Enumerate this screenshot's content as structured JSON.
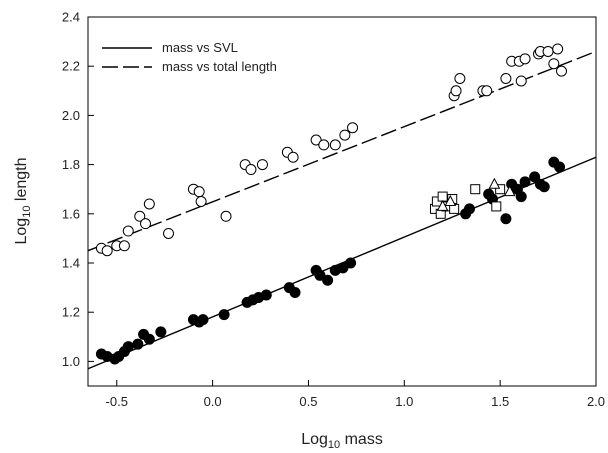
{
  "chart_data": {
    "type": "scatter",
    "xlabel": {
      "main": "Log",
      "sub": "10",
      "rest": " mass"
    },
    "ylabel": {
      "main": "Log",
      "sub": "10",
      "rest": " length"
    },
    "xlim": [
      -0.65,
      2.0
    ],
    "ylim": [
      0.9,
      2.4
    ],
    "xticks": [
      -0.5,
      0.0,
      0.5,
      1.0,
      1.5,
      2.0
    ],
    "xtick_labels": [
      "-0.5",
      "0.0",
      "0.5",
      "1.0",
      "1.5",
      "2.0"
    ],
    "yticks": [
      1.0,
      1.2,
      1.4,
      1.6,
      1.8,
      2.0,
      2.2,
      2.4
    ],
    "ytick_labels": [
      "1.0",
      "1.2",
      "1.4",
      "1.6",
      "1.8",
      "2.0",
      "2.2",
      "2.4"
    ],
    "legend_position": "top-left",
    "legend": [
      {
        "label": "mass vs SVL",
        "style": "solid"
      },
      {
        "label": "mass vs total length",
        "style": "dashed"
      }
    ],
    "lines": [
      {
        "style": "solid",
        "x": [
          -0.65,
          2.0
        ],
        "y": [
          0.97,
          1.83
        ]
      },
      {
        "style": "dashed",
        "x": [
          -0.65,
          2.0
        ],
        "y": [
          1.45,
          2.26
        ]
      }
    ],
    "series": [
      {
        "marker": "open-circle",
        "points": [
          [
            -0.58,
            1.46
          ],
          [
            -0.55,
            1.45
          ],
          [
            -0.5,
            1.47
          ],
          [
            -0.46,
            1.47
          ],
          [
            -0.44,
            1.53
          ],
          [
            -0.38,
            1.59
          ],
          [
            -0.35,
            1.56
          ],
          [
            -0.33,
            1.64
          ],
          [
            -0.23,
            1.52
          ],
          [
            -0.1,
            1.7
          ],
          [
            -0.07,
            1.69
          ],
          [
            -0.06,
            1.65
          ],
          [
            0.07,
            1.59
          ],
          [
            0.17,
            1.8
          ],
          [
            0.2,
            1.78
          ],
          [
            0.26,
            1.8
          ],
          [
            0.39,
            1.85
          ],
          [
            0.42,
            1.83
          ],
          [
            0.54,
            1.9
          ],
          [
            0.58,
            1.88
          ],
          [
            0.64,
            1.88
          ],
          [
            0.69,
            1.92
          ],
          [
            0.73,
            1.95
          ],
          [
            1.26,
            2.08
          ],
          [
            1.27,
            2.1
          ],
          [
            1.29,
            2.15
          ],
          [
            1.41,
            2.1
          ],
          [
            1.43,
            2.1
          ],
          [
            1.53,
            2.15
          ],
          [
            1.56,
            2.22
          ],
          [
            1.6,
            2.22
          ],
          [
            1.61,
            2.14
          ],
          [
            1.63,
            2.23
          ],
          [
            1.7,
            2.25
          ],
          [
            1.71,
            2.26
          ],
          [
            1.75,
            2.26
          ],
          [
            1.78,
            2.21
          ],
          [
            1.8,
            2.27
          ],
          [
            1.82,
            2.18
          ]
        ]
      },
      {
        "marker": "filled-circle",
        "points": [
          [
            -0.58,
            1.03
          ],
          [
            -0.55,
            1.02
          ],
          [
            -0.51,
            1.01
          ],
          [
            -0.49,
            1.02
          ],
          [
            -0.46,
            1.04
          ],
          [
            -0.44,
            1.06
          ],
          [
            -0.39,
            1.07
          ],
          [
            -0.36,
            1.11
          ],
          [
            -0.33,
            1.09
          ],
          [
            -0.27,
            1.12
          ],
          [
            -0.1,
            1.17
          ],
          [
            -0.07,
            1.16
          ],
          [
            -0.05,
            1.17
          ],
          [
            0.06,
            1.19
          ],
          [
            0.18,
            1.24
          ],
          [
            0.21,
            1.25
          ],
          [
            0.24,
            1.26
          ],
          [
            0.28,
            1.27
          ],
          [
            0.4,
            1.3
          ],
          [
            0.43,
            1.28
          ],
          [
            0.54,
            1.37
          ],
          [
            0.56,
            1.35
          ],
          [
            0.6,
            1.33
          ],
          [
            0.64,
            1.37
          ],
          [
            0.68,
            1.38
          ],
          [
            0.72,
            1.4
          ],
          [
            1.32,
            1.6
          ],
          [
            1.34,
            1.62
          ],
          [
            1.44,
            1.68
          ],
          [
            1.46,
            1.66
          ],
          [
            1.53,
            1.58
          ],
          [
            1.56,
            1.72
          ],
          [
            1.59,
            1.7
          ],
          [
            1.61,
            1.67
          ],
          [
            1.63,
            1.73
          ],
          [
            1.68,
            1.75
          ],
          [
            1.71,
            1.72
          ],
          [
            1.73,
            1.71
          ],
          [
            1.78,
            1.81
          ],
          [
            1.81,
            1.79
          ]
        ]
      },
      {
        "marker": "open-square",
        "points": [
          [
            1.16,
            1.62
          ],
          [
            1.17,
            1.65
          ],
          [
            1.19,
            1.6
          ],
          [
            1.2,
            1.67
          ],
          [
            1.22,
            1.63
          ],
          [
            1.25,
            1.66
          ],
          [
            1.26,
            1.62
          ],
          [
            1.37,
            1.7
          ],
          [
            1.48,
            1.63
          ],
          [
            1.5,
            1.7
          ]
        ]
      },
      {
        "marker": "open-triangle",
        "points": [
          [
            1.2,
            1.63
          ],
          [
            1.24,
            1.65
          ],
          [
            1.47,
            1.72
          ],
          [
            1.55,
            1.69
          ]
        ]
      }
    ]
  }
}
